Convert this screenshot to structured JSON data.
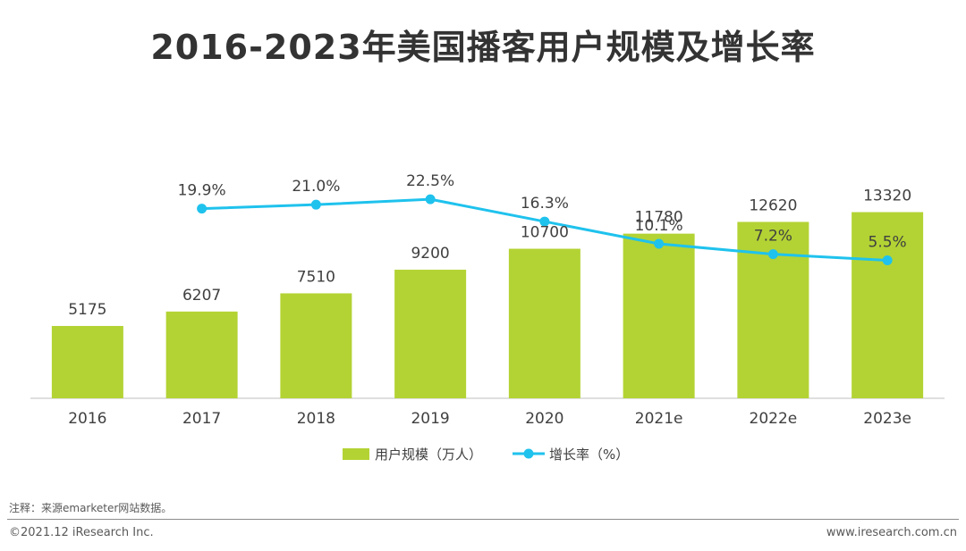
{
  "chart_data": {
    "type": "bar",
    "title": "2016-2023年美国播客用户规模及增长率",
    "categories": [
      "2016",
      "2017",
      "2018",
      "2019",
      "2020",
      "2021e",
      "2022e",
      "2023e"
    ],
    "series": [
      {
        "name": "用户规模（万人）",
        "type": "bar",
        "color": "#b3d334",
        "values": [
          5175,
          6207,
          7510,
          9200,
          10700,
          11780,
          12620,
          13320
        ],
        "labels": [
          "5175",
          "6207",
          "7510",
          "9200",
          "10700",
          "11780",
          "12620",
          "13320"
        ]
      },
      {
        "name": "增长率（%）",
        "type": "line",
        "color": "#1fc2ed",
        "values": [
          null,
          19.9,
          21.0,
          22.5,
          16.3,
          10.1,
          7.2,
          5.5
        ],
        "labels": [
          "",
          "19.9%",
          "21.0%",
          "22.5%",
          "16.3%",
          "10.1%",
          "7.2%",
          "5.5%"
        ]
      }
    ],
    "ylim": [
      0,
      20000
    ],
    "y2lim": [
      -60,
      30
    ],
    "xlabel": "",
    "ylabel": "",
    "grid": false,
    "legend_position": "bottom-center"
  },
  "note": "注释：来源emarketer网站数据。",
  "footer": {
    "copyright": "©2021.12 iResearch Inc.",
    "site": "www.iresearch.com.cn"
  }
}
